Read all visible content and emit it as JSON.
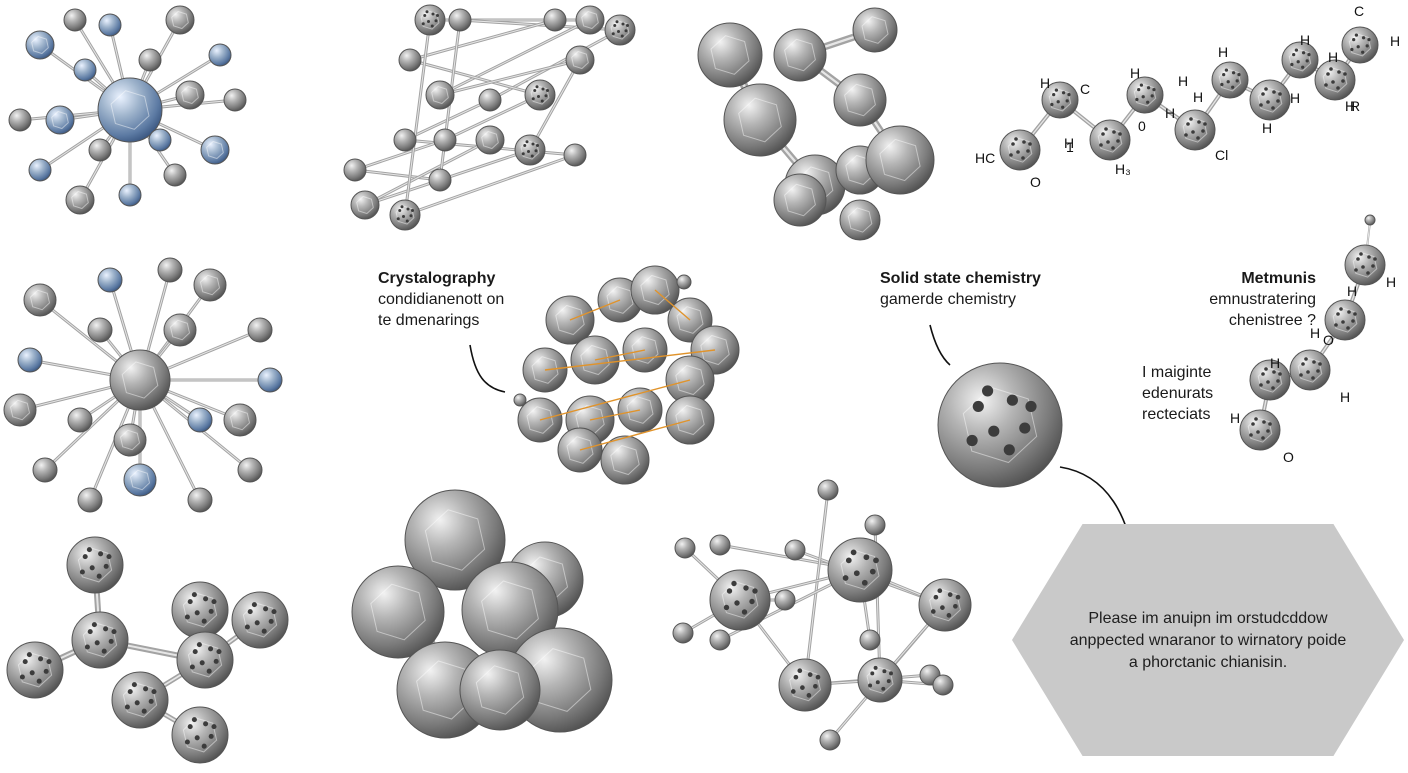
{
  "colors": {
    "background": "#ffffff",
    "atom_base": "#8e8e8e",
    "atom_light": "#d8d8d8",
    "atom_dark": "#4e4e4e",
    "bond": "#a9a9a9",
    "accent_blue": "#3f7fd0",
    "accent_orange": "#e0932b",
    "callout_box": "#c9c9c9",
    "leader_line": "#111111"
  },
  "callouts": {
    "crystallography": {
      "title": "Crystalography",
      "lines": [
        "condidianenott on",
        "te dmenarings"
      ]
    },
    "solid_state": {
      "title": "Solid state chemistry",
      "lines": [
        "gamerde chemistry"
      ]
    },
    "metmunis": {
      "title": "Metmunis",
      "lines": [
        "emnustratering",
        "chenistree ?"
      ]
    },
    "maiginte": {
      "lines": [
        "I maiginte",
        "edenurats",
        "recteciats"
      ]
    },
    "info_box": {
      "lines": [
        "Please im anuipn im orstudcddow",
        "anppected wnaranor to wirnatory poide",
        "a phorctanic chianisin."
      ]
    }
  },
  "atom_labels": {
    "chain_top_right": [
      "C",
      "H",
      "H",
      "H",
      "H",
      "C",
      "H",
      "H",
      "H",
      "H",
      "H",
      "H",
      "H",
      "R",
      "H",
      "0",
      "1",
      "Cl",
      "H",
      "H₃",
      "HC",
      "O"
    ],
    "chain_right_mid": [
      "H",
      "H",
      "H",
      "O",
      "H",
      "H",
      "H",
      "O"
    ]
  }
}
